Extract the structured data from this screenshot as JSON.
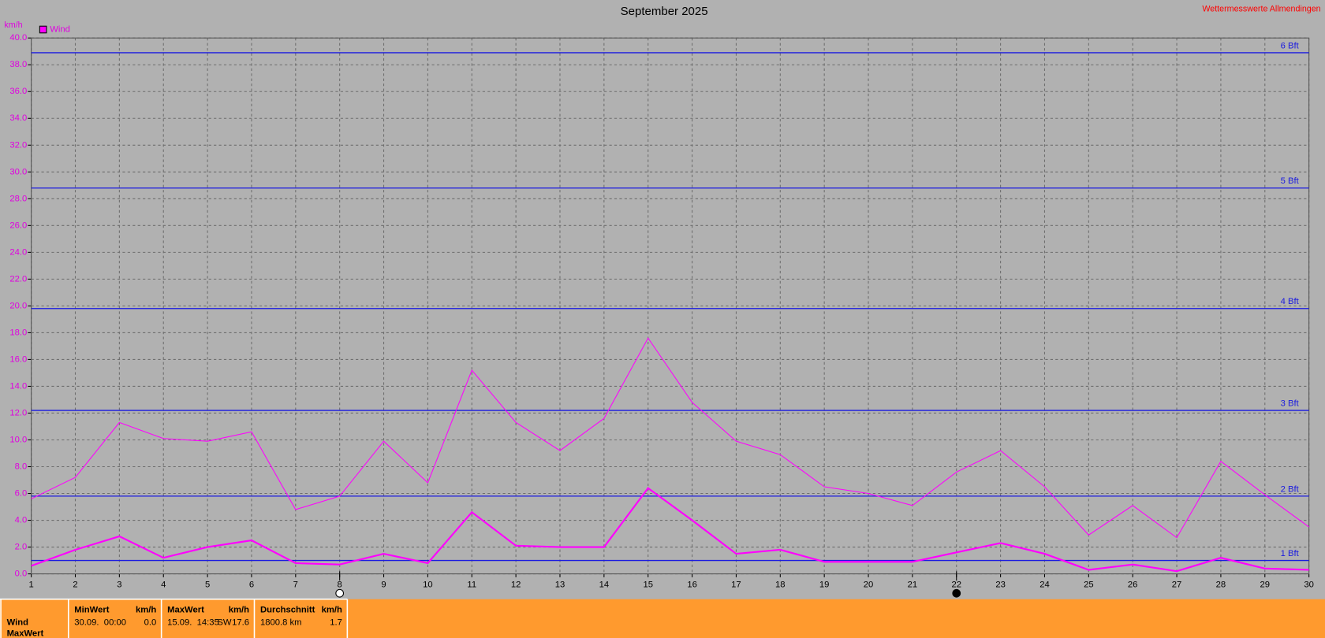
{
  "chart_data": {
    "type": "line",
    "title": "September 2025",
    "source": "Wettermesswerte Allmendingen",
    "y_unit": "km/h",
    "x": [
      1,
      2,
      3,
      4,
      5,
      6,
      7,
      8,
      9,
      10,
      11,
      12,
      13,
      14,
      15,
      16,
      17,
      18,
      19,
      20,
      21,
      22,
      23,
      24,
      25,
      26,
      27,
      28,
      29,
      30
    ],
    "xlim": [
      1,
      30
    ],
    "xticks": [
      1,
      2,
      3,
      4,
      5,
      6,
      7,
      8,
      9,
      10,
      11,
      12,
      13,
      14,
      15,
      16,
      17,
      18,
      19,
      20,
      21,
      22,
      23,
      24,
      25,
      26,
      27,
      28,
      29,
      30
    ],
    "ylim": [
      0,
      40
    ],
    "yticks": [
      {
        "value": 0,
        "label": "0.0"
      },
      {
        "value": 2,
        "label": "2.0"
      },
      {
        "value": 4,
        "label": "4.0"
      },
      {
        "value": 6,
        "label": "6.0"
      },
      {
        "value": 8,
        "label": "8.0"
      },
      {
        "value": 10,
        "label": "10.0"
      },
      {
        "value": 12,
        "label": "12.0"
      },
      {
        "value": 14,
        "label": "14.0"
      },
      {
        "value": 16,
        "label": "16.0"
      },
      {
        "value": 18,
        "label": "18.0"
      },
      {
        "value": 20,
        "label": "20.0"
      },
      {
        "value": 22,
        "label": "22.0"
      },
      {
        "value": 24,
        "label": "24.0"
      },
      {
        "value": 26,
        "label": "26.0"
      },
      {
        "value": 28,
        "label": "28.0"
      },
      {
        "value": 30,
        "label": "30.0"
      },
      {
        "value": 32,
        "label": "32.0"
      },
      {
        "value": 34,
        "label": "34.0"
      },
      {
        "value": 36,
        "label": "36.0"
      },
      {
        "value": 38,
        "label": "38.0"
      },
      {
        "value": 40,
        "label": "40.0"
      }
    ],
    "grid": true,
    "series": [
      {
        "name": "Wind",
        "color": "#ff00ff",
        "values": [
          0.6,
          1.8,
          2.8,
          1.2,
          2.0,
          2.5,
          0.8,
          0.7,
          1.5,
          0.8,
          4.6,
          2.1,
          2.0,
          2.0,
          6.4,
          4.0,
          1.5,
          1.8,
          0.9,
          0.9,
          0.9,
          1.6,
          2.3,
          1.5,
          0.3,
          0.7,
          0.2,
          1.2,
          0.4,
          0.3
        ]
      },
      {
        "color": "#ff00ff",
        "values": [
          5.6,
          7.2,
          11.3,
          10.1,
          9.9,
          10.6,
          4.8,
          5.8,
          9.9,
          6.8,
          15.2,
          11.3,
          9.2,
          11.6,
          17.6,
          12.8,
          9.9,
          8.9,
          6.5,
          6.0,
          5.1,
          7.6,
          9.2,
          6.5,
          2.9,
          5.1,
          2.7,
          8.4,
          5.9,
          3.5
        ]
      }
    ],
    "reference_lines": {
      "color": "#1a1ae0",
      "lines": [
        {
          "value": 1.0,
          "label": "1 Bft"
        },
        {
          "value": 5.8,
          "label": "2 Bft"
        },
        {
          "value": 12.2,
          "label": "3 Bft"
        },
        {
          "value": 19.8,
          "label": "4 Bft"
        },
        {
          "value": 28.8,
          "label": "5 Bft"
        },
        {
          "value": 38.9,
          "label": "6 Bft"
        }
      ]
    },
    "moon_phases": [
      {
        "day": 8,
        "phase": "full"
      },
      {
        "day": 22,
        "phase": "new"
      }
    ]
  },
  "footer": {
    "row_label": "Wind",
    "row_label2": "MaxWert",
    "min": {
      "header": "MinWert",
      "unit": "km/h",
      "time": "30.09.  00:00",
      "value": "0.0"
    },
    "max": {
      "header": "MaxWert",
      "unit": "km/h",
      "time": "15.09.  14:35",
      "direction": "SW",
      "value": "17.6"
    },
    "avg": {
      "header": "Durchschnitt",
      "unit": "km/h",
      "distance": "1800.8 km",
      "value": "1.7"
    }
  }
}
